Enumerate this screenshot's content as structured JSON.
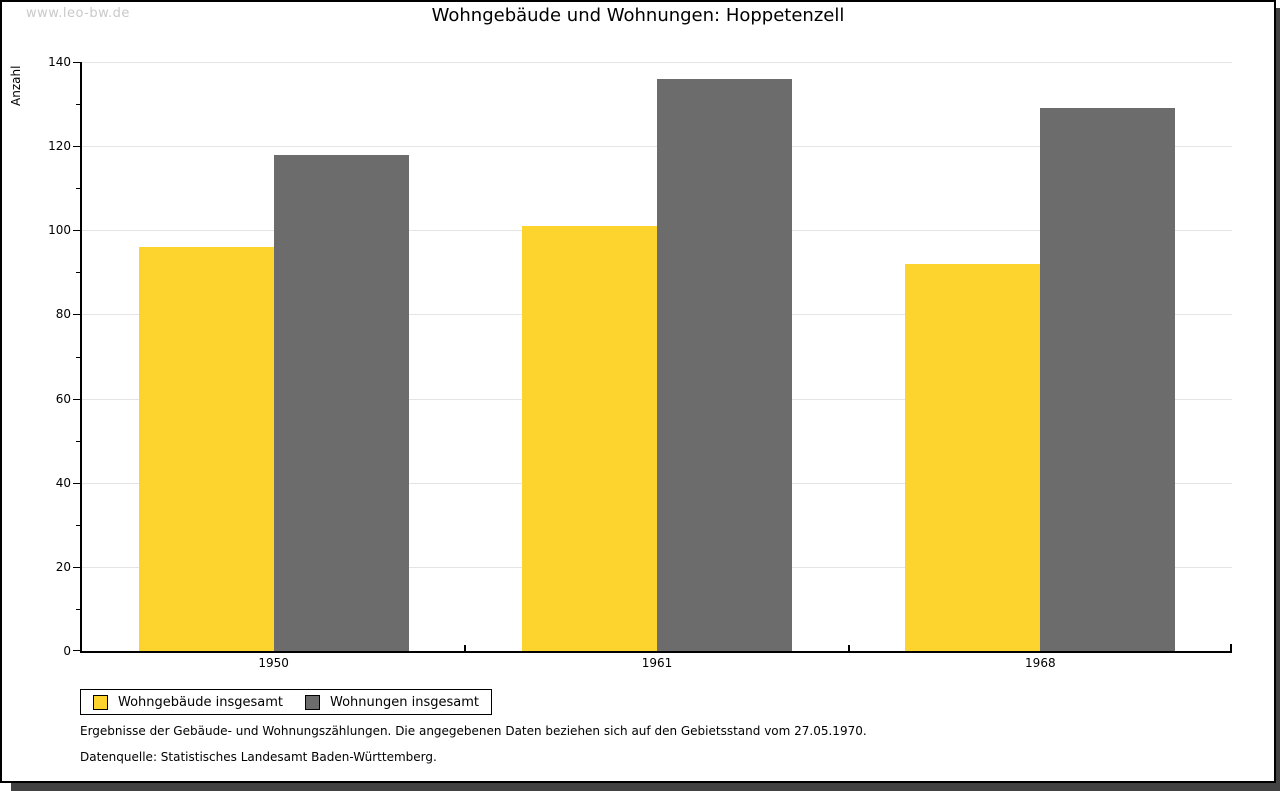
{
  "watermark": "www.leo-bw.de",
  "chart_data": {
    "type": "bar",
    "title": "Wohngebäude und Wohnungen: Hoppetenzell",
    "xlabel": "",
    "ylabel": "Anzahl",
    "categories": [
      "1950",
      "1961",
      "1968"
    ],
    "series": [
      {
        "name": "Wohngebäude insgesamt",
        "color": "#FCD42D",
        "values": [
          96,
          101,
          92
        ]
      },
      {
        "name": "Wohnungen insgesamt",
        "color": "#6C6C6C",
        "values": [
          118,
          136,
          129
        ]
      }
    ],
    "ylim": [
      0,
      140
    ],
    "ytick_major": 20,
    "ytick_minor": 10,
    "grid": "horizontal-major",
    "legend_position": "bottom-left"
  },
  "footnotes": [
    "Ergebnisse der Gebäude- und Wohnungszählungen. Die angegebenen Daten beziehen sich auf den Gebietsstand vom 27.05.1970.",
    "Datenquelle: Statistisches Landesamt Baden-Württemberg."
  ],
  "colors": {
    "frame_border": "#000000",
    "frame_shadow": "#424242",
    "gridline": "#e4e4e4",
    "watermark": "#c9c9c9",
    "background": "#ffffff"
  }
}
